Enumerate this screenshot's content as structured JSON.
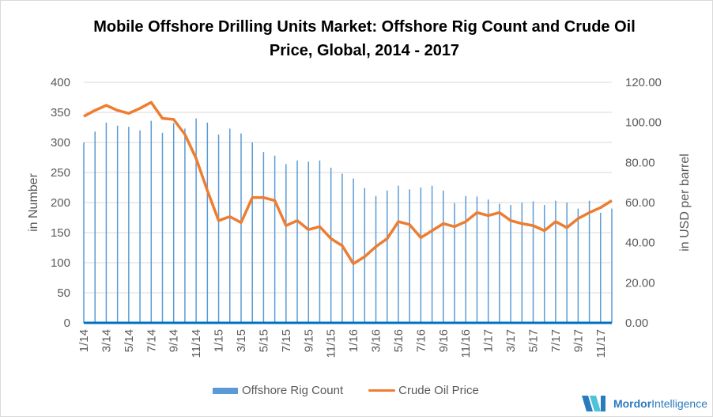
{
  "chart_data": {
    "type": "bar+line",
    "title": "Mobile Offshore Drilling Units Market: Offshore Rig Count and Crude Oil Price, Global, 2014 - 2017",
    "ylabel": "in Number",
    "y2label": "in USD per barrel",
    "ylim": [
      0,
      400
    ],
    "y2lim": [
      0,
      120
    ],
    "yticks": [
      "0",
      "50",
      "100",
      "150",
      "200",
      "250",
      "300",
      "350",
      "400"
    ],
    "y2ticks": [
      "0.00",
      "20.00",
      "40.00",
      "60.00",
      "80.00",
      "100.00",
      "120.00"
    ],
    "grid": true,
    "legend": "bottom",
    "categories": [
      "1/14",
      "2/14",
      "3/14",
      "4/14",
      "5/14",
      "6/14",
      "7/14",
      "8/14",
      "9/14",
      "10/14",
      "11/14",
      "12/14",
      "1/15",
      "2/15",
      "3/15",
      "4/15",
      "5/15",
      "6/15",
      "7/15",
      "8/15",
      "9/15",
      "10/15",
      "11/15",
      "12/15",
      "1/16",
      "2/16",
      "3/16",
      "4/16",
      "5/16",
      "6/16",
      "7/16",
      "8/16",
      "9/16",
      "10/16",
      "11/16",
      "12/16",
      "1/17",
      "2/17",
      "3/17",
      "4/17",
      "5/17",
      "6/17",
      "7/17",
      "8/17",
      "9/17",
      "10/17",
      "11/17",
      "12/17"
    ],
    "xtick_labels": [
      "1/14",
      "3/14",
      "5/14",
      "7/14",
      "9/14",
      "11/14",
      "1/15",
      "3/15",
      "5/15",
      "7/15",
      "9/15",
      "11/15",
      "1/16",
      "3/16",
      "5/16",
      "7/16",
      "9/16",
      "11/16",
      "1/17",
      "3/17",
      "5/17",
      "7/17",
      "9/17",
      "11/17"
    ],
    "series": [
      {
        "name": "Offshore Rig Count",
        "type": "bar",
        "axis": "left",
        "color": "#5b9bd5",
        "values": [
          300,
          318,
          333,
          328,
          326,
          320,
          336,
          316,
          332,
          323,
          340,
          333,
          313,
          323,
          315,
          300,
          284,
          278,
          264,
          270,
          268,
          270,
          258,
          248,
          240,
          224,
          211,
          220,
          228,
          222,
          225,
          228,
          220,
          199,
          211,
          210,
          205,
          198,
          196,
          200,
          202,
          196,
          203,
          200,
          190,
          203,
          183,
          190
        ]
      },
      {
        "name": "Crude Oil Price",
        "type": "line",
        "axis": "right",
        "color": "#ed7d31",
        "values": [
          103,
          106,
          108.5,
          106,
          104.5,
          107,
          110,
          102,
          101.5,
          94,
          82,
          66,
          51,
          53,
          50,
          62.5,
          62.5,
          61,
          48.5,
          51,
          46.5,
          48,
          42,
          38.5,
          29.5,
          33,
          38,
          42,
          50.5,
          49,
          42.5,
          46,
          49.5,
          48,
          50.5,
          55,
          53.5,
          55,
          51,
          49.5,
          48.5,
          46,
          50.5,
          47.5,
          52,
          55,
          57.5,
          61
        ]
      }
    ]
  },
  "logo": {
    "text1": "Mordor",
    "text2": "Intelligence"
  }
}
